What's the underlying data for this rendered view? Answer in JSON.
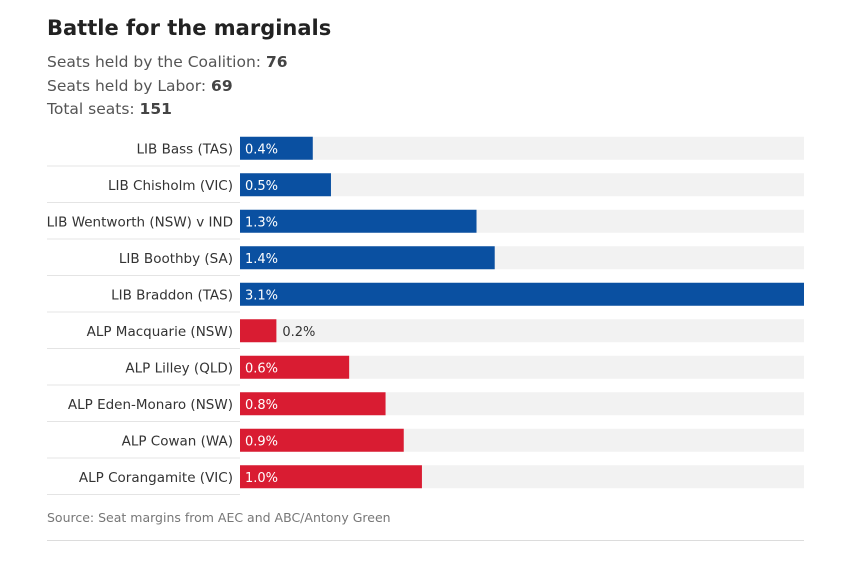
{
  "title": "Battle for the marginals",
  "stats": [
    {
      "label": "Seats held by the Coalition: ",
      "value": "76"
    },
    {
      "label": "Seats held by Labor: ",
      "value": "69"
    },
    {
      "label": "Total seats: ",
      "value": "151"
    }
  ],
  "source": "Source: Seat margins from AEC and ABC/Antony Green",
  "colors": {
    "LIB": "#0a50a1",
    "ALP": "#d91c32",
    "track": "#f2f2f2"
  },
  "chart_data": {
    "type": "bar",
    "orientation": "horizontal",
    "categories": [
      "LIB Bass (TAS)",
      "LIB Chisholm (VIC)",
      "LIB Wentworth (NSW) v IND",
      "LIB Boothby (SA)",
      "LIB Braddon (TAS)",
      "ALP Macquarie (NSW)",
      "ALP Lilley (QLD)",
      "ALP Eden-Monaro (NSW)",
      "ALP Cowan (WA)",
      "ALP Corangamite (VIC)"
    ],
    "values": [
      0.4,
      0.5,
      1.3,
      1.4,
      3.1,
      0.2,
      0.6,
      0.8,
      0.9,
      1.0
    ],
    "labels": [
      "0.4%",
      "0.5%",
      "1.3%",
      "1.4%",
      "3.1%",
      "0.2%",
      "0.6%",
      "0.8%",
      "0.9%",
      "1.0%"
    ],
    "party": [
      "LIB",
      "LIB",
      "LIB",
      "LIB",
      "LIB",
      "ALP",
      "ALP",
      "ALP",
      "ALP",
      "ALP"
    ],
    "xlim": [
      0,
      3.1
    ]
  }
}
